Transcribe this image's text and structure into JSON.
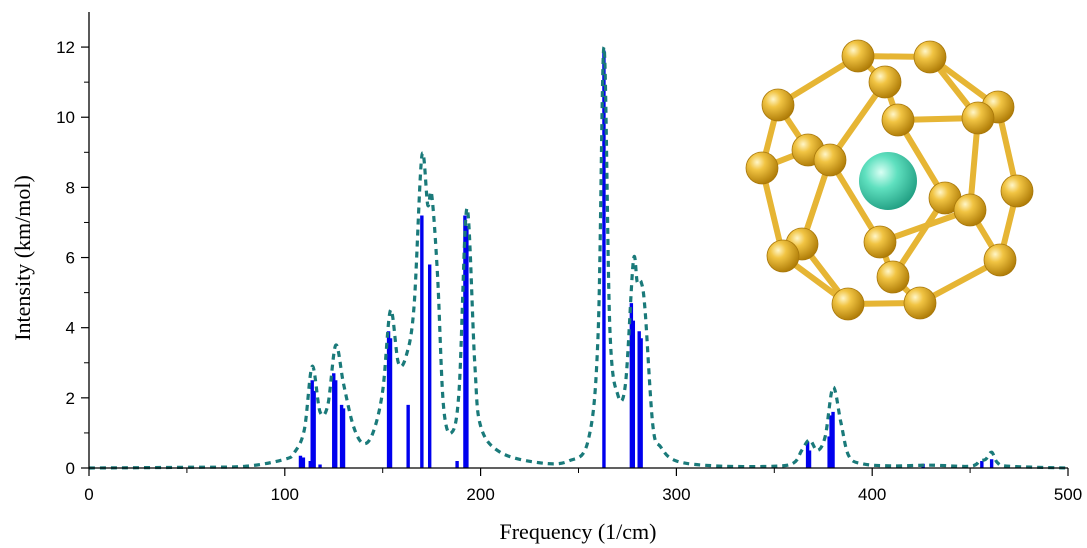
{
  "chart_data": {
    "type": "line",
    "title": "",
    "xlabel": "Frequency (1/cm)",
    "ylabel": "Intensity (km/mol)",
    "xlim": [
      0,
      500
    ],
    "ylim": [
      0,
      13
    ],
    "x_ticks": [
      0,
      100,
      200,
      300,
      400,
      500
    ],
    "y_ticks": [
      0,
      2,
      4,
      6,
      8,
      10,
      12
    ],
    "grid": false,
    "legend": "none",
    "colors": {
      "sticks": "#0000ee",
      "spectrum": "#1a7a7a",
      "cage_atoms": "#e6b534",
      "center_atom": "#4fd6b4"
    },
    "series": [
      {
        "type": "stick",
        "x": [
          108,
          109.5,
          113,
          114,
          115,
          118,
          125,
          126,
          129,
          130,
          153,
          154,
          163,
          170,
          174,
          188,
          192,
          193,
          263,
          277,
          278,
          281,
          282,
          367,
          368,
          378,
          379,
          380,
          426,
          456,
          461
        ],
        "y": [
          0.35,
          0.3,
          0.2,
          2.5,
          2.2,
          0.1,
          2.7,
          2.5,
          1.8,
          1.7,
          3.9,
          3.7,
          1.8,
          7.2,
          5.8,
          0.2,
          7.2,
          6.9,
          11.9,
          4.7,
          4.2,
          3.9,
          3.7,
          0.75,
          0.5,
          0.9,
          1.5,
          1.6,
          0.12,
          0.2,
          0.25
        ]
      },
      {
        "type": "line",
        "style": "dashed",
        "x": [
          0,
          50,
          80,
          100,
          105,
          110,
          114,
          118,
          122,
          126,
          130,
          135,
          140,
          145,
          150,
          154,
          158,
          162,
          166,
          170,
          173,
          175,
          178,
          181,
          185,
          189,
          193,
          197,
          200,
          210,
          230,
          245,
          255,
          260,
          263,
          266,
          270,
          274,
          278,
          280,
          282,
          284,
          288,
          292,
          300,
          320,
          350,
          360,
          364,
          368,
          372,
          376,
          380,
          384,
          388,
          395,
          410,
          430,
          450,
          455,
          458,
          461,
          464,
          470,
          500
        ],
        "y": [
          0,
          0.02,
          0.05,
          0.25,
          0.45,
          1.1,
          2.9,
          1.6,
          1.8,
          3.5,
          2.4,
          1.2,
          0.7,
          1.0,
          2.2,
          4.5,
          3.0,
          3.2,
          4.6,
          8.9,
          7.5,
          7.8,
          5.5,
          1.8,
          1.0,
          2.2,
          7.4,
          3.0,
          1.2,
          0.45,
          0.15,
          0.2,
          0.8,
          3.8,
          12.0,
          4.0,
          2.1,
          2.4,
          5.9,
          5.3,
          5.3,
          4.5,
          1.2,
          0.6,
          0.2,
          0.06,
          0.05,
          0.15,
          0.5,
          0.8,
          0.5,
          0.9,
          2.3,
          1.3,
          0.35,
          0.12,
          0.06,
          0.08,
          0.05,
          0.2,
          0.25,
          0.45,
          0.15,
          0.05,
          0
        ]
      }
    ]
  }
}
